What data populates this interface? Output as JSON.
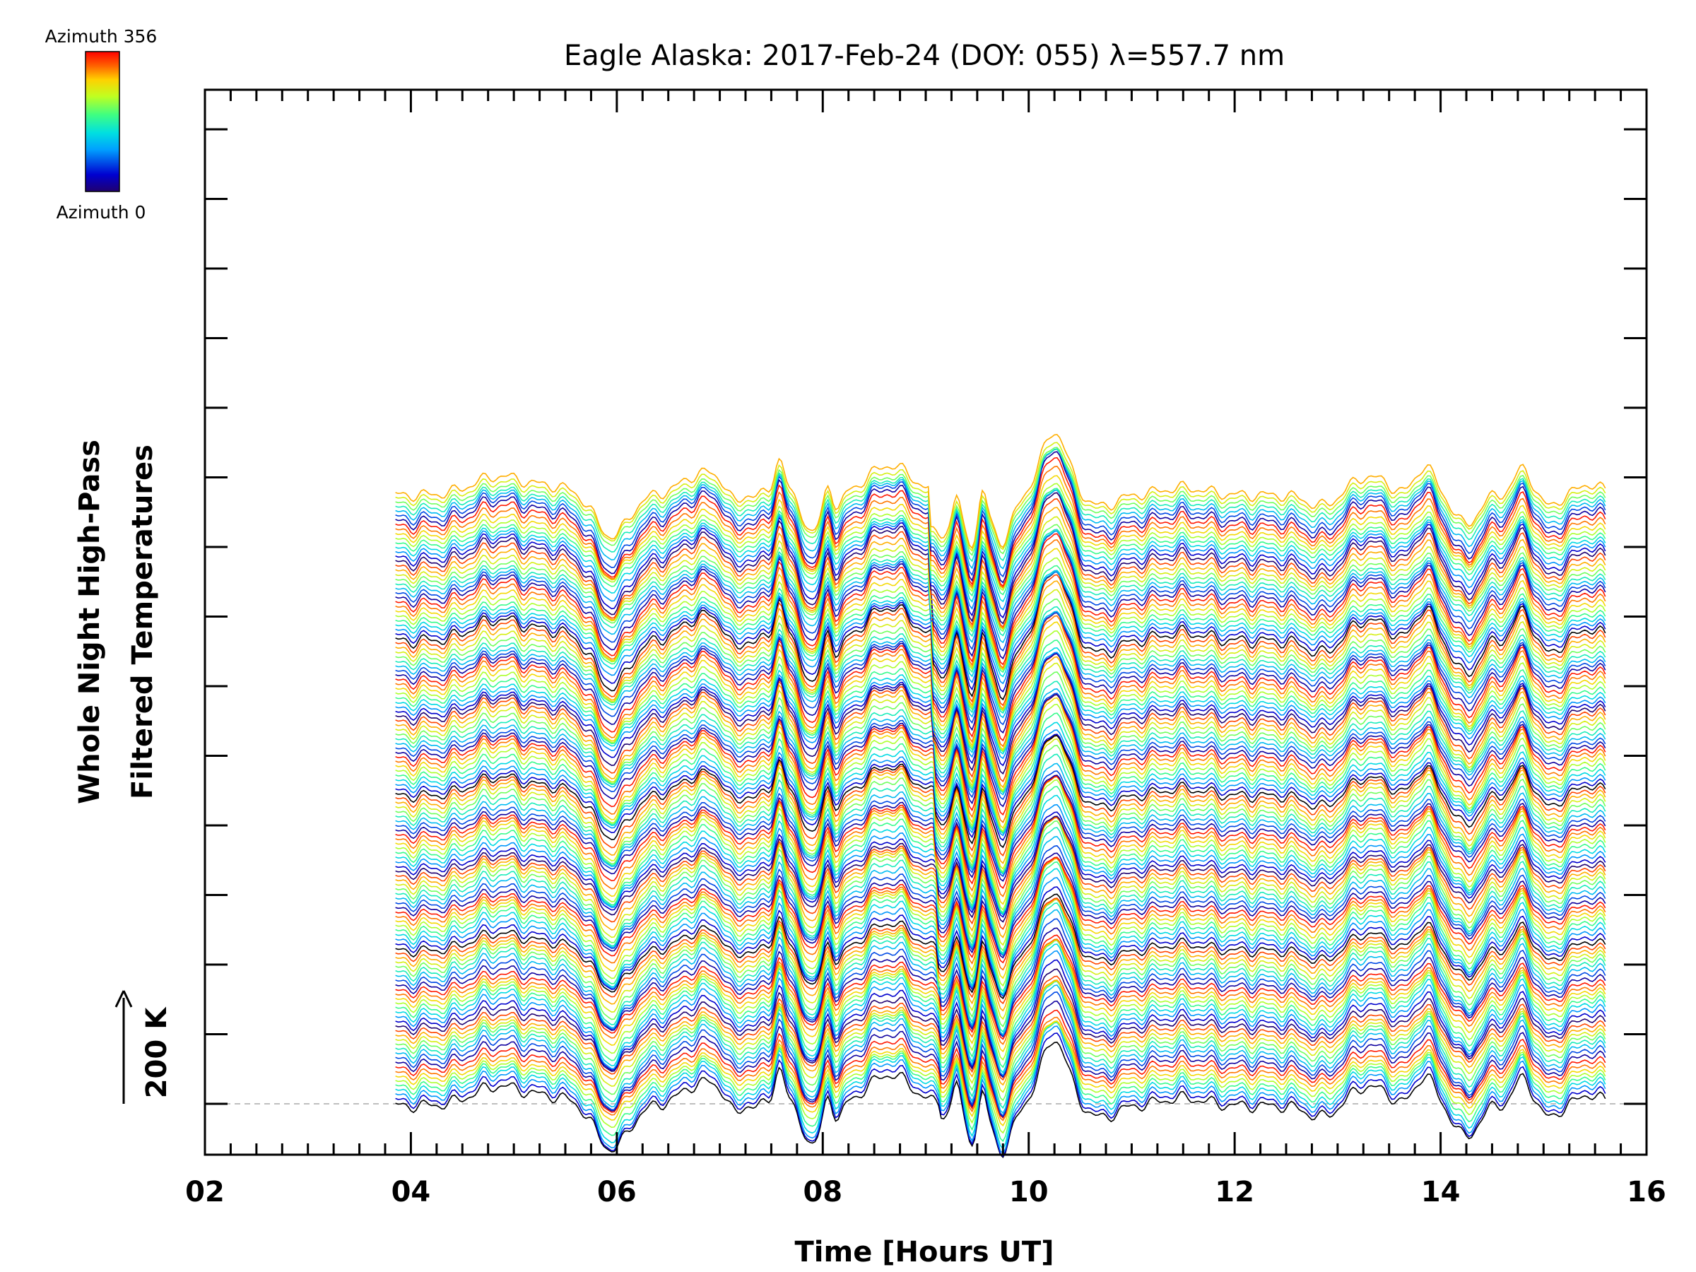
{
  "chart_data": {
    "type": "line",
    "title": "Eagle Alaska: 2017-Feb-24 (DOY: 055) λ=557.7 nm",
    "xlabel": "Time [Hours UT]",
    "ylabel_line1": "Whole Night High-Pass",
    "ylabel_line2": "Filtered Temperatures",
    "scale_label": "200 K",
    "xlim": [
      2,
      16
    ],
    "x_ticks": [
      "02",
      "04",
      "06",
      "08",
      "10",
      "12",
      "14",
      "16"
    ],
    "x_range_data": [
      3.85,
      15.6
    ],
    "num_traces": 135,
    "azimuth_range": [
      0,
      356
    ],
    "colorbar": {
      "top_label": "Azimuth 356",
      "bottom_label": "Azimuth 0",
      "colormap": "rainbow",
      "colors": [
        "#200070",
        "#0000d0",
        "#00a0ff",
        "#00e0e0",
        "#40ff80",
        "#c0ff20",
        "#ffd000",
        "#ff6000",
        "#ff0000"
      ]
    },
    "baseline": "dashed grey",
    "grid": false,
    "legend": "colorbar top-left"
  }
}
